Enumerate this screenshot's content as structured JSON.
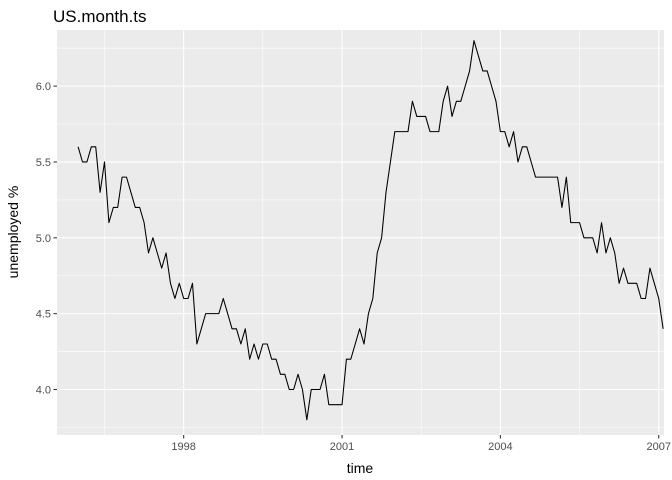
{
  "chart_data": {
    "type": "line",
    "title": "US.month.ts",
    "xlabel": "time",
    "ylabel": "unemployed %",
    "xlim": [
      1995.6,
      2007.1
    ],
    "ylim": [
      3.7,
      6.37
    ],
    "grid": true,
    "x_ticks": [
      {
        "value": 1998,
        "label": "1998"
      },
      {
        "value": 2001,
        "label": "2001"
      },
      {
        "value": 2004,
        "label": "2004"
      },
      {
        "value": 2007,
        "label": "2007"
      }
    ],
    "y_ticks": [
      {
        "value": 4.0,
        "label": "4.0"
      },
      {
        "value": 4.5,
        "label": "4.5"
      },
      {
        "value": 5.0,
        "label": "5.0"
      },
      {
        "value": 5.5,
        "label": "5.5"
      },
      {
        "value": 6.0,
        "label": "6.0"
      }
    ],
    "series": [
      {
        "color": "#000000",
        "start": 1996.0,
        "frequency": 12,
        "values": [
          5.6,
          5.5,
          5.5,
          5.6,
          5.6,
          5.3,
          5.5,
          5.1,
          5.2,
          5.2,
          5.4,
          5.4,
          5.3,
          5.2,
          5.2,
          5.1,
          4.9,
          5.0,
          4.9,
          4.8,
          4.9,
          4.7,
          4.6,
          4.7,
          4.6,
          4.6,
          4.7,
          4.3,
          4.4,
          4.5,
          4.5,
          4.5,
          4.5,
          4.6,
          4.5,
          4.4,
          4.4,
          4.3,
          4.4,
          4.2,
          4.3,
          4.2,
          4.3,
          4.3,
          4.2,
          4.2,
          4.1,
          4.1,
          4.0,
          4.0,
          4.1,
          4.0,
          3.8,
          4.0,
          4.0,
          4.0,
          4.1,
          3.9,
          3.9,
          3.9,
          3.9,
          4.2,
          4.2,
          4.3,
          4.4,
          4.3,
          4.5,
          4.6,
          4.9,
          5.0,
          5.3,
          5.5,
          5.7,
          5.7,
          5.7,
          5.7,
          5.9,
          5.8,
          5.8,
          5.8,
          5.7,
          5.7,
          5.7,
          5.9,
          6.0,
          5.8,
          5.9,
          5.9,
          6.0,
          6.1,
          6.3,
          6.2,
          6.1,
          6.1,
          6.0,
          5.9,
          5.7,
          5.7,
          5.6,
          5.7,
          5.5,
          5.6,
          5.6,
          5.5,
          5.4,
          5.4,
          5.4,
          5.4,
          5.4,
          5.4,
          5.2,
          5.4,
          5.1,
          5.1,
          5.1,
          5.0,
          5.0,
          5.0,
          4.9,
          5.1,
          4.9,
          5.0,
          4.9,
          4.7,
          4.8,
          4.7,
          4.7,
          4.7,
          4.6,
          4.6,
          4.8,
          4.7,
          4.6,
          4.4
        ]
      }
    ]
  }
}
